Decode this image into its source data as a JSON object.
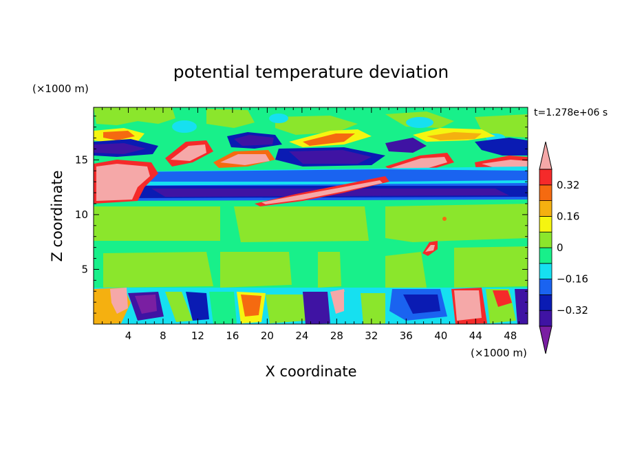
{
  "chart_data": {
    "type": "heatmap",
    "title": "potential temperature deviation",
    "xlabel": "X coordinate",
    "ylabel": "Z coordinate",
    "x_unit": "(×1000 m)",
    "y_unit": "(×1000 m)",
    "time_label": "t=1.278e+06 s",
    "xlim": [
      0,
      50
    ],
    "ylim": [
      0,
      19.8
    ],
    "x_ticks": [
      4,
      8,
      12,
      16,
      20,
      24,
      28,
      32,
      36,
      40,
      44,
      48
    ],
    "y_ticks": [
      5,
      10,
      15
    ],
    "x_tick_labels": [
      "4",
      "8",
      "12",
      "16",
      "20",
      "24",
      "28",
      "32",
      "36",
      "40",
      "44",
      "48"
    ],
    "y_tick_labels": [
      "5",
      "10",
      "15"
    ],
    "colorbar": {
      "levels": [
        -0.4,
        -0.32,
        -0.24,
        -0.16,
        -0.08,
        0,
        0.08,
        0.16,
        0.24,
        0.32,
        0.4
      ],
      "tick_labels": [
        {
          "value": 0.32,
          "label": "0.32"
        },
        {
          "value": 0.16,
          "label": "0.16"
        },
        {
          "value": 0,
          "label": "0"
        },
        {
          "value": -0.16,
          "label": "−0.16"
        },
        {
          "value": -0.32,
          "label": "−0.32"
        }
      ],
      "colors": [
        "#7a1fa2",
        "#3f13a3",
        "#0a1bb3",
        "#1a63f0",
        "#16e0f0",
        "#18f08a",
        "#8be62c",
        "#f5f510",
        "#f5b010",
        "#f56a10",
        "#f52a2a",
        "#f5a8a8"
      ],
      "extends": "both"
    },
    "bands": [
      {
        "z_range": [
          18.5,
          19.8
        ],
        "description": "mostly near-zero (green) with light-green patches"
      },
      {
        "z_range": [
          15.5,
          18.5
        ],
        "value_range": [
          -0.4,
          0.4
        ],
        "description": "mixed strong positive (pink/red) and negative (blue/purple) anomalies"
      },
      {
        "z_range": [
          13.0,
          15.5
        ],
        "value_range": [
          -0.2,
          0.4
        ],
        "description": "pink warm blobs near x=0-6 and sloping band 16-42"
      },
      {
        "z_range": [
          11.5,
          13.5
        ],
        "value_range": [
          -0.4,
          -0.1
        ],
        "description": "continuous negative band (blue/purple)"
      },
      {
        "z_range": [
          3.5,
          11.5
        ],
        "value_range": [
          -0.05,
          0.08
        ],
        "description": "near-zero region, alternating green/light green"
      },
      {
        "z_range": [
          0.0,
          3.5
        ],
        "value_range": [
          -0.4,
          0.4
        ],
        "description": "turbulent boundary layer with mixed anomalies"
      }
    ]
  }
}
